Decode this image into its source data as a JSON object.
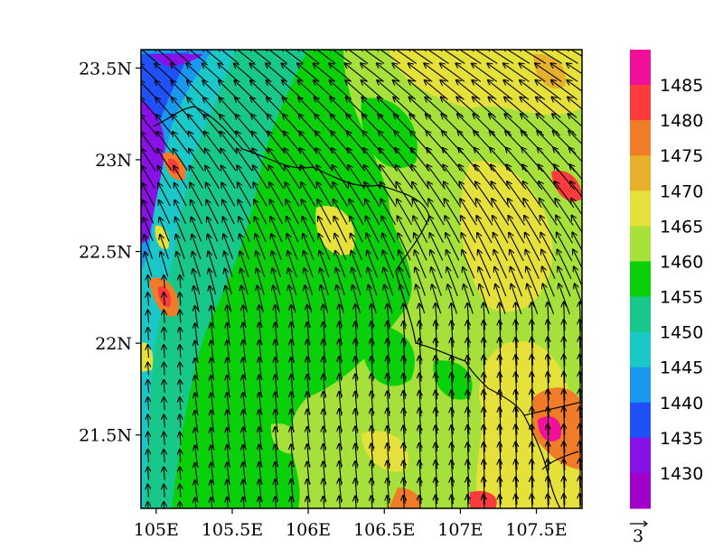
{
  "map": {
    "lat_labels": [
      "23.5N",
      "23N",
      "22.5N",
      "22N",
      "21.5N"
    ],
    "lat_values": [
      23.5,
      23.0,
      22.5,
      22.0,
      21.5
    ],
    "lon_labels": [
      "105E",
      "105.5E",
      "106E",
      "106.5E",
      "107E",
      "107.5E"
    ],
    "lon_values": [
      105.0,
      105.5,
      106.0,
      106.5,
      107.0,
      107.5
    ],
    "lat_range": [
      21.1,
      23.6
    ],
    "lon_range": [
      104.9,
      107.8
    ],
    "field": "contour-filled values 1430-1490 with wind vectors overlay"
  },
  "colorbar": {
    "levels": [
      "1485",
      "1480",
      "1475",
      "1470",
      "1465",
      "1460",
      "1455",
      "1450",
      "1445",
      "1440",
      "1435",
      "1430"
    ],
    "colors": [
      "#f0109a",
      "#fc3c3c",
      "#f07c28",
      "#e6b02c",
      "#e6e03a",
      "#a6e03a",
      "#0ad00a",
      "#18c88a",
      "#1ac8c8",
      "#1a98f0",
      "#2050f8",
      "#8a10e8",
      "#a000c8"
    ]
  },
  "vector_reference": {
    "label": "3"
  }
}
